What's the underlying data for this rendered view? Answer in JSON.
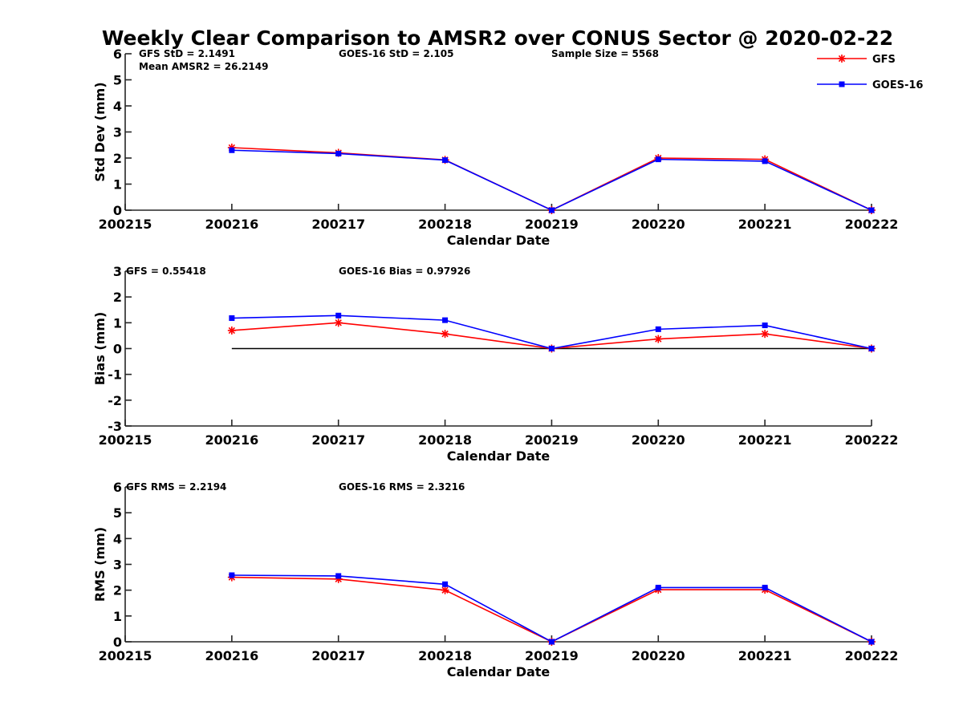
{
  "figure_title": "Weekly Clear Comparison to AMSR2 over CONUS Sector @ 2020-02-22",
  "legend": {
    "placement": "top-right",
    "entries": [
      {
        "label": "GFS",
        "color": "#ff0000",
        "marker": "asterisk"
      },
      {
        "label": "GOES-16",
        "color": "#0000ff",
        "marker": "square"
      }
    ]
  },
  "annotations": {
    "std": [
      "GFS StD = 2.1491",
      "Mean AMSR2 = 26.2149",
      "GOES-16 StD = 2.105",
      "Sample Size = 5568"
    ],
    "bias": [
      "GFS = 0.55418",
      "GOES-16 Bias  = 0.97926"
    ],
    "rms": [
      "GFS RMS = 2.2194",
      "GOES-16 RMS = 2.3216"
    ]
  },
  "chart_data": [
    {
      "type": "line",
      "categories": [
        "200215",
        "200216",
        "200217",
        "200218",
        "200219",
        "200220",
        "200221",
        "200222"
      ],
      "xlabel": "Calendar Date",
      "ylabel": "Std Dev (mm)",
      "ylim": [
        0,
        6
      ],
      "yticks": [
        "0",
        "1",
        "2",
        "3",
        "4",
        "5",
        "6"
      ],
      "grid": false,
      "zero_line": false,
      "series": [
        {
          "name": "GFS",
          "color": "#ff0000",
          "marker": "asterisk",
          "values": [
            null,
            2.4,
            2.2,
            1.93,
            0.0,
            2.0,
            1.95,
            0.0
          ]
        },
        {
          "name": "GOES-16",
          "color": "#0000ff",
          "marker": "square",
          "values": [
            null,
            2.3,
            2.17,
            1.92,
            0.0,
            1.95,
            1.88,
            0.0
          ]
        }
      ]
    },
    {
      "type": "line",
      "categories": [
        "200215",
        "200216",
        "200217",
        "200218",
        "200219",
        "200220",
        "200221",
        "200222"
      ],
      "xlabel": "Calendar Date",
      "ylabel": "Bias (mm)",
      "ylim": [
        -3,
        3
      ],
      "yticks": [
        "-3",
        "-2",
        "-1",
        "0",
        "1",
        "2",
        "3"
      ],
      "grid": false,
      "zero_line": true,
      "series": [
        {
          "name": "GFS",
          "color": "#ff0000",
          "marker": "asterisk",
          "values": [
            null,
            0.7,
            1.0,
            0.57,
            0.0,
            0.37,
            0.57,
            0.0
          ]
        },
        {
          "name": "GOES-16",
          "color": "#0000ff",
          "marker": "square",
          "values": [
            null,
            1.18,
            1.28,
            1.1,
            0.0,
            0.75,
            0.9,
            0.0
          ]
        }
      ]
    },
    {
      "type": "line",
      "categories": [
        "200215",
        "200216",
        "200217",
        "200218",
        "200219",
        "200220",
        "200221",
        "200222"
      ],
      "xlabel": "Calendar Date",
      "ylabel": "RMS (mm)",
      "ylim": [
        0,
        6
      ],
      "yticks": [
        "0",
        "1",
        "2",
        "3",
        "4",
        "5",
        "6"
      ],
      "grid": false,
      "zero_line": false,
      "series": [
        {
          "name": "GFS",
          "color": "#ff0000",
          "marker": "asterisk",
          "values": [
            null,
            2.5,
            2.43,
            2.0,
            0.0,
            2.02,
            2.02,
            0.0
          ]
        },
        {
          "name": "GOES-16",
          "color": "#0000ff",
          "marker": "square",
          "values": [
            null,
            2.58,
            2.55,
            2.23,
            0.0,
            2.1,
            2.1,
            0.0
          ]
        }
      ]
    }
  ]
}
